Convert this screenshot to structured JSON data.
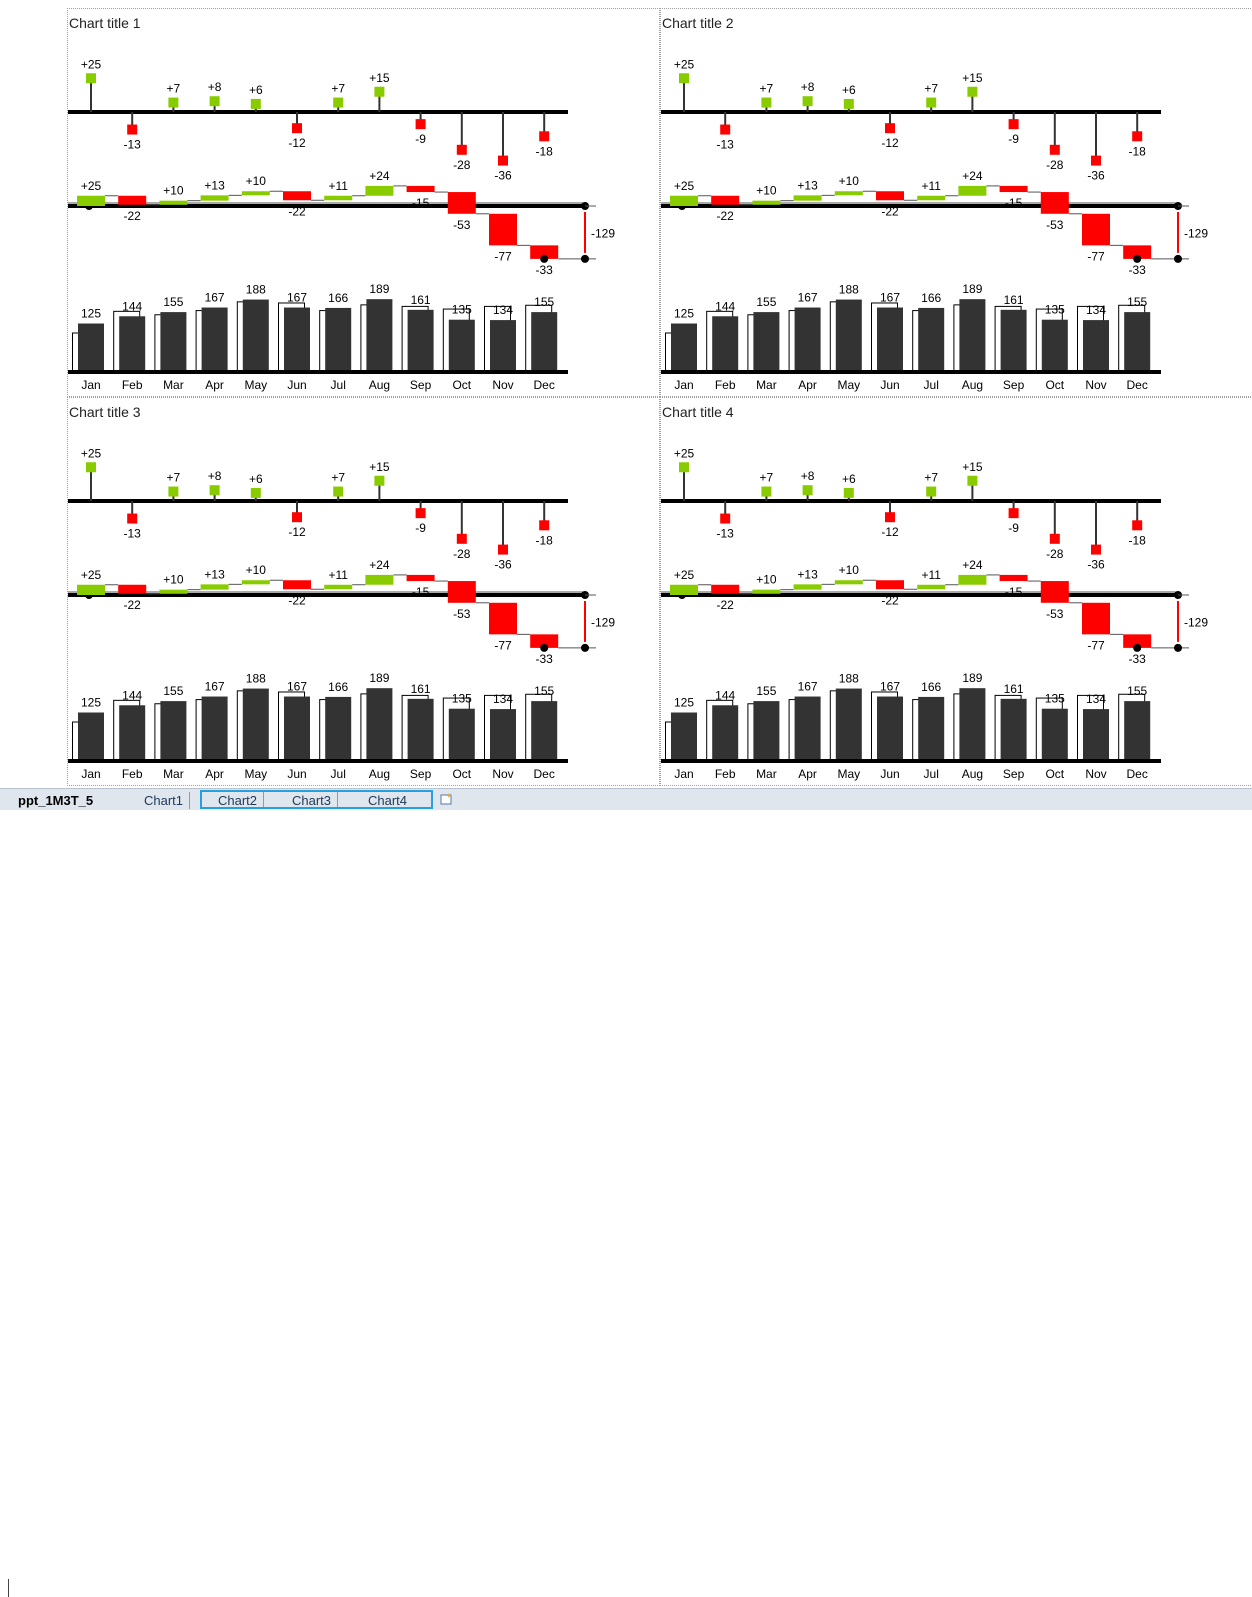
{
  "sheet": {
    "tabs": [
      "ppt_1M3T_5",
      "Chart1",
      "Chart2",
      "Chart3",
      "Chart4"
    ],
    "active_tab": "ppt_1M3T_5",
    "selected_tabs": [
      "Chart2",
      "Chart3",
      "Chart4"
    ],
    "new_sheet_icon": "new-sheet-icon"
  },
  "colors": {
    "positive": "#88cc00",
    "negative": "#ff0000",
    "bar": "#333333",
    "axis": "#000000"
  },
  "chart_data": [
    {
      "title": "Chart title 1",
      "type": "bar",
      "categories": [
        "Jan",
        "Feb",
        "Mar",
        "Apr",
        "May",
        "Jun",
        "Jul",
        "Aug",
        "Sep",
        "Oct",
        "Nov",
        "Dec"
      ],
      "variance": {
        "values": [
          25,
          -13,
          7,
          8,
          6,
          -12,
          7,
          15,
          -9,
          -28,
          -36,
          -18
        ],
        "labels": [
          "+25",
          "-13",
          "+7",
          "+8",
          "+6",
          "-12",
          "+7",
          "+15",
          "-9",
          "-28",
          "-36",
          "-18"
        ]
      },
      "cumulative": {
        "values": [
          25,
          -22,
          10,
          13,
          10,
          -22,
          11,
          24,
          -15,
          -53,
          -77,
          -33
        ],
        "labels": [
          "+25",
          "-22",
          "+10",
          "+13",
          "+10",
          "-22",
          "+11",
          "+24",
          "-15",
          "-53",
          "-77",
          "-33"
        ],
        "total": -129,
        "total_label": "-129"
      },
      "actual": [
        125,
        144,
        155,
        167,
        188,
        167,
        166,
        189,
        161,
        135,
        134,
        155
      ],
      "previous": [
        100,
        157,
        148,
        159,
        182,
        179,
        159,
        174,
        170,
        163,
        170,
        173
      ]
    },
    {
      "title": "Chart title 2",
      "type": "bar",
      "categories": [
        "Jan",
        "Feb",
        "Mar",
        "Apr",
        "May",
        "Jun",
        "Jul",
        "Aug",
        "Sep",
        "Oct",
        "Nov",
        "Dec"
      ],
      "variance": {
        "values": [
          25,
          -13,
          7,
          8,
          6,
          -12,
          7,
          15,
          -9,
          -28,
          -36,
          -18
        ],
        "labels": [
          "+25",
          "-13",
          "+7",
          "+8",
          "+6",
          "-12",
          "+7",
          "+15",
          "-9",
          "-28",
          "-36",
          "-18"
        ]
      },
      "cumulative": {
        "values": [
          25,
          -22,
          10,
          13,
          10,
          -22,
          11,
          24,
          -15,
          -53,
          -77,
          -33
        ],
        "labels": [
          "+25",
          "-22",
          "+10",
          "+13",
          "+10",
          "-22",
          "+11",
          "+24",
          "-15",
          "-53",
          "-77",
          "-33"
        ],
        "total": -129,
        "total_label": "-129"
      },
      "actual": [
        125,
        144,
        155,
        167,
        188,
        167,
        166,
        189,
        161,
        135,
        134,
        155
      ],
      "previous": [
        100,
        157,
        148,
        159,
        182,
        179,
        159,
        174,
        170,
        163,
        170,
        173
      ]
    },
    {
      "title": "Chart title 3",
      "type": "bar",
      "categories": [
        "Jan",
        "Feb",
        "Mar",
        "Apr",
        "May",
        "Jun",
        "Jul",
        "Aug",
        "Sep",
        "Oct",
        "Nov",
        "Dec"
      ],
      "variance": {
        "values": [
          25,
          -13,
          7,
          8,
          6,
          -12,
          7,
          15,
          -9,
          -28,
          -36,
          -18
        ],
        "labels": [
          "+25",
          "-13",
          "+7",
          "+8",
          "+6",
          "-12",
          "+7",
          "+15",
          "-9",
          "-28",
          "-36",
          "-18"
        ]
      },
      "cumulative": {
        "values": [
          25,
          -22,
          10,
          13,
          10,
          -22,
          11,
          24,
          -15,
          -53,
          -77,
          -33
        ],
        "labels": [
          "+25",
          "-22",
          "+10",
          "+13",
          "+10",
          "-22",
          "+11",
          "+24",
          "-15",
          "-53",
          "-77",
          "-33"
        ],
        "total": -129,
        "total_label": "-129"
      },
      "actual": [
        125,
        144,
        155,
        167,
        188,
        167,
        166,
        189,
        161,
        135,
        134,
        155
      ],
      "previous": [
        100,
        157,
        148,
        159,
        182,
        179,
        159,
        174,
        170,
        163,
        170,
        173
      ]
    },
    {
      "title": "Chart title 4",
      "type": "bar",
      "categories": [
        "Jan",
        "Feb",
        "Mar",
        "Apr",
        "May",
        "Jun",
        "Jul",
        "Aug",
        "Sep",
        "Oct",
        "Nov",
        "Dec"
      ],
      "variance": {
        "values": [
          25,
          -13,
          7,
          8,
          6,
          -12,
          7,
          15,
          -9,
          -28,
          -36,
          -18
        ],
        "labels": [
          "+25",
          "-13",
          "+7",
          "+8",
          "+6",
          "-12",
          "+7",
          "+15",
          "-9",
          "-28",
          "-36",
          "-18"
        ]
      },
      "cumulative": {
        "values": [
          25,
          -22,
          10,
          13,
          10,
          -22,
          11,
          24,
          -15,
          -53,
          -77,
          -33
        ],
        "labels": [
          "+25",
          "-22",
          "+10",
          "+13",
          "+10",
          "-22",
          "+11",
          "+24",
          "-15",
          "-53",
          "-77",
          "-33"
        ],
        "total": -129,
        "total_label": "-129"
      },
      "actual": [
        125,
        144,
        155,
        167,
        188,
        167,
        166,
        189,
        161,
        135,
        134,
        155
      ],
      "previous": [
        100,
        157,
        148,
        159,
        182,
        179,
        159,
        174,
        170,
        163,
        170,
        173
      ]
    }
  ]
}
